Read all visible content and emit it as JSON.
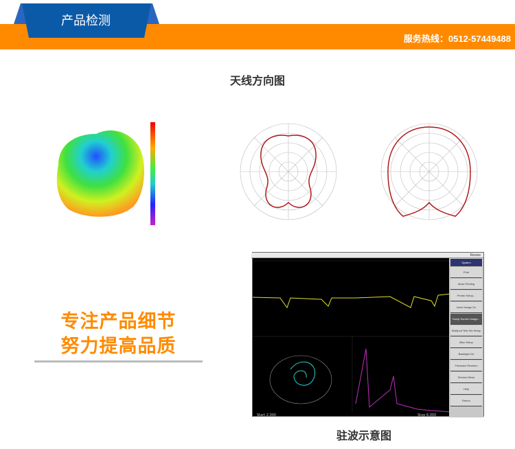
{
  "header": {
    "title": "产品检测",
    "hotline": "服务热线：0512-57449488",
    "colors": {
      "orange": "#ff8a00",
      "blue": "#0b5aa8"
    }
  },
  "sections": {
    "antenna_caption": "天线方向图",
    "vswr_caption": "驻波示意图"
  },
  "slogan": {
    "line1": "专注产品细节",
    "line2": "努力提高品质"
  },
  "vna": {
    "menu_title": "System",
    "menu": [
      "Print",
      "Abort Printing",
      "Printer Setup...",
      "Invert Image On",
      "Dump Screen Image...",
      "Multiport Test Set Setup",
      "Misc Setup",
      "Backlight On",
      "Firmware Revision",
      "Service Menu",
      "Help",
      "Return"
    ],
    "top_label": "Resize",
    "footer_left": "Start 2.000",
    "footer_right": "Stop 6.000"
  }
}
